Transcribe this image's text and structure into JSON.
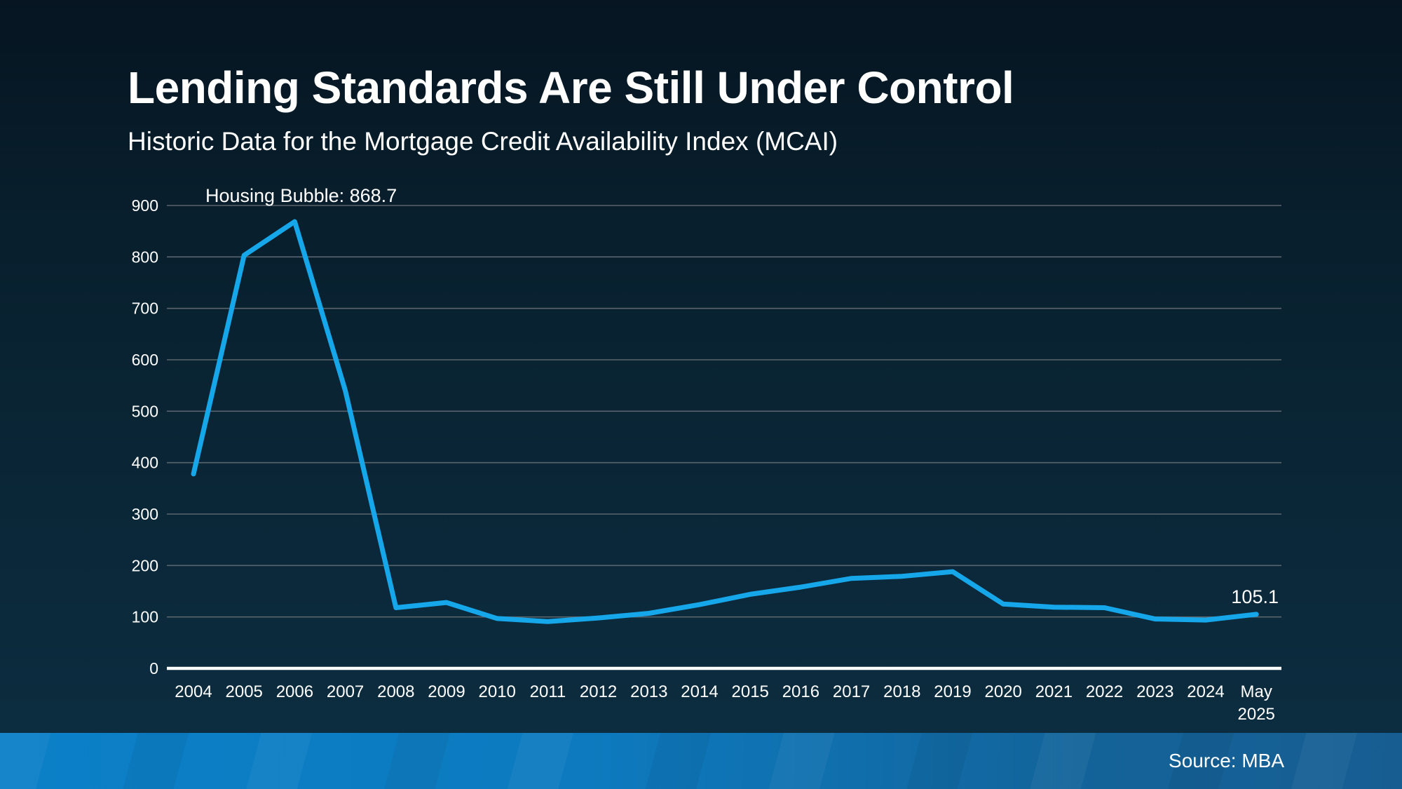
{
  "slide": {
    "title": "Lending Standards Are Still Under Control",
    "subtitle": "Historic Data for the Mortgage Credit Availability Index (MCAI)",
    "source": "Source: MBA"
  },
  "colors": {
    "background_top": "#061521",
    "background_bottom": "#0d2e42",
    "line": "#16a7ea",
    "grid": "#5a646d",
    "axis": "#ffffff",
    "text": "#ffffff",
    "footer_left": "#0b80c8",
    "footer_right": "#175d92"
  },
  "chart_data": {
    "type": "line",
    "title": "Historic Data for the Mortgage Credit Availability Index (MCAI)",
    "categories": [
      "2004",
      "2005",
      "2006",
      "2007",
      "2008",
      "2009",
      "2010",
      "2011",
      "2012",
      "2013",
      "2014",
      "2015",
      "2016",
      "2017",
      "2018",
      "2019",
      "2020",
      "2021",
      "2022",
      "2023",
      "2024",
      "May 2025"
    ],
    "values": [
      378,
      803,
      868.7,
      540,
      118,
      128,
      97,
      91,
      98,
      107,
      124,
      144,
      158,
      175,
      179,
      188,
      125,
      119,
      118,
      96,
      94,
      105.1
    ],
    "series_name": "MCAI",
    "xlabel": "",
    "ylabel": "",
    "ylim": [
      0,
      900
    ],
    "ytick_step": 100,
    "yticks": [
      0,
      100,
      200,
      300,
      400,
      500,
      600,
      700,
      800,
      900
    ],
    "grid": "horizontal",
    "legend": "none",
    "annotations": [
      {
        "id": "peak",
        "text": "Housing Bubble: 868.7",
        "category": "2006",
        "value": 868.7
      },
      {
        "id": "latest",
        "text": "105.1",
        "category": "May 2025",
        "value": 105.1
      }
    ]
  }
}
